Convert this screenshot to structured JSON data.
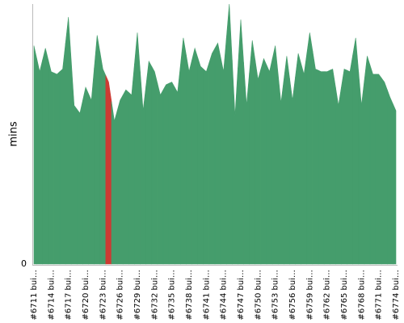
{
  "chart_data": {
    "type": "area",
    "y_label": "mins",
    "ylim": [
      0,
      100
    ],
    "yticks": [
      0
    ],
    "color": "#459d6c",
    "categories": [
      "#6711 bui…",
      null,
      null,
      "#6714 bui…",
      null,
      null,
      "#6717 bui…",
      null,
      null,
      "#6720 bui…",
      null,
      null,
      "#6723 bui…",
      null,
      null,
      "#6726 bui…",
      null,
      null,
      "#6729 bui…",
      null,
      null,
      "#6732 bui…",
      null,
      null,
      "#6735 bui…",
      null,
      null,
      "#6738 bui…",
      null,
      null,
      "#6741 bui…",
      null,
      null,
      "#6744 bui…",
      null,
      null,
      "#6747 bui…",
      null,
      null,
      "#6750 bui…",
      null,
      null,
      "#6753 bui…",
      null,
      null,
      "#6756 bui…",
      null,
      null,
      "#6759 bui…",
      null,
      null,
      "#6762 bui…",
      null,
      null,
      "#6765 bui…",
      null,
      null,
      "#6768 bui…",
      null,
      null,
      "#6771 bui…",
      null,
      null,
      "#6774 bui…"
    ],
    "values": [
      84,
      74,
      83,
      74,
      73,
      75,
      95,
      61,
      58,
      68,
      63,
      88,
      75,
      70,
      55,
      63,
      67,
      65,
      89,
      59,
      78,
      74,
      65,
      69,
      70,
      66,
      87,
      74,
      83,
      76,
      74,
      81,
      85,
      74,
      100,
      57,
      94,
      61,
      86,
      71,
      79,
      74,
      84,
      62,
      80,
      63,
      81,
      73,
      89,
      75,
      74,
      74,
      75,
      61,
      75,
      74,
      87,
      61,
      80,
      73,
      73,
      70,
      64,
      59
    ],
    "point_colors": [
      "#459d6c",
      "#459d6c",
      "#459d6c",
      "#459d6c",
      "#459d6c",
      "#459d6c",
      "#459d6c",
      "#459d6c",
      "#459d6c",
      "#459d6c",
      "#459d6c",
      "#459d6c",
      "#459d6c",
      "#cc3b33",
      "#459d6c",
      "#459d6c",
      "#459d6c",
      "#459d6c",
      "#459d6c",
      "#459d6c",
      "#459d6c",
      "#459d6c",
      "#459d6c",
      "#459d6c",
      "#459d6c",
      "#459d6c",
      "#459d6c",
      "#459d6c",
      "#459d6c",
      "#459d6c",
      "#459d6c",
      "#459d6c",
      "#459d6c",
      "#459d6c",
      "#459d6c",
      "#459d6c",
      "#459d6c",
      "#459d6c",
      "#459d6c",
      "#459d6c",
      "#459d6c",
      "#459d6c",
      "#459d6c",
      "#459d6c",
      "#459d6c",
      "#459d6c",
      "#459d6c",
      "#459d6c",
      "#459d6c",
      "#459d6c",
      "#459d6c",
      "#459d6c",
      "#459d6c",
      "#459d6c",
      "#459d6c",
      "#459d6c",
      "#459d6c",
      "#459d6c",
      "#459d6c",
      "#459d6c",
      "#459d6c",
      "#459d6c",
      "#459d6c",
      "#459d6c"
    ]
  }
}
